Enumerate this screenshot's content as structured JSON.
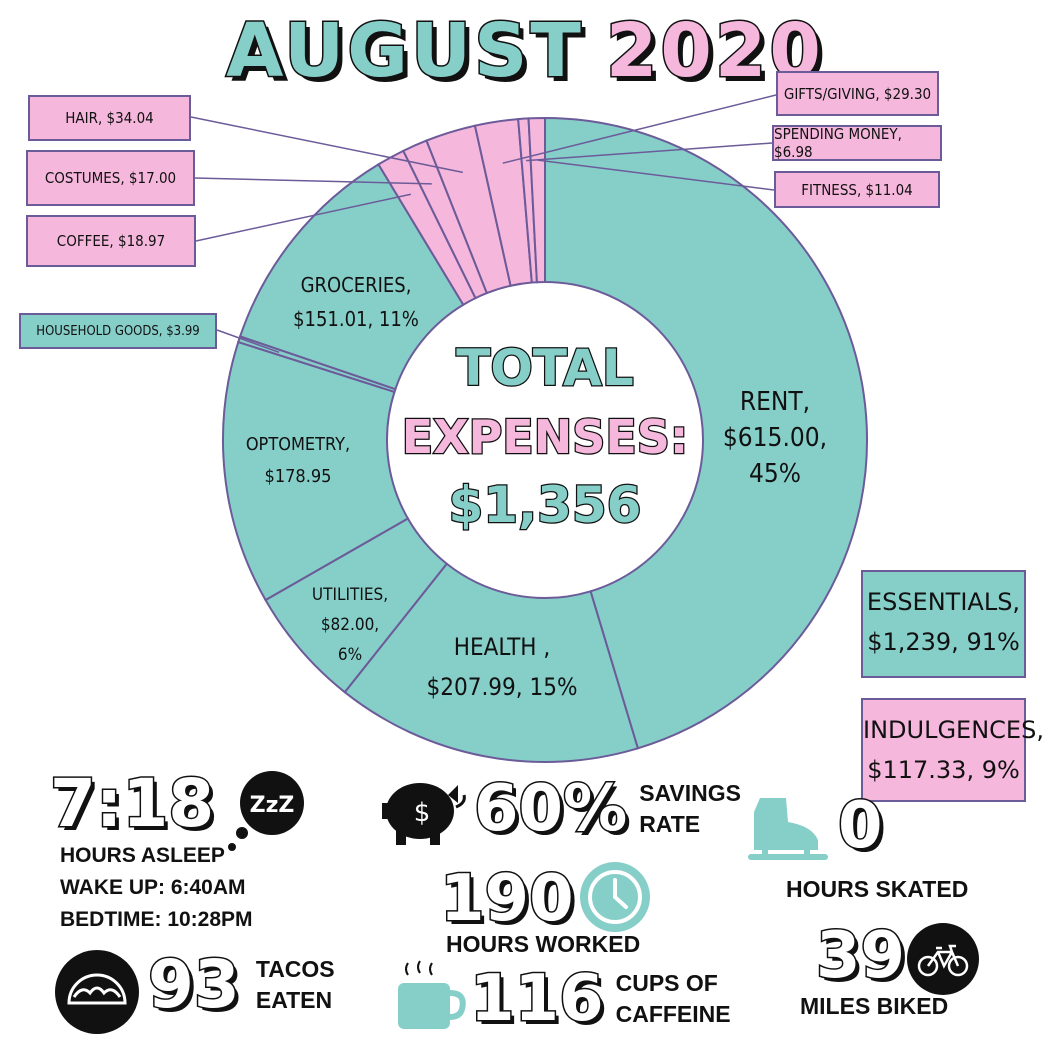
{
  "title": {
    "part1": "AUGUST",
    "part2": "2020"
  },
  "center": {
    "line1": "TOTAL",
    "line2": "EXPENSES:",
    "line3": "$1,356"
  },
  "colors": {
    "essential": "#86cfc9",
    "indulgence": "#f6b7dc",
    "border": "#6c5b99"
  },
  "chart_data": {
    "type": "pie",
    "donut": true,
    "total": 1356,
    "slices": [
      {
        "name": "RENT",
        "value": 615.0,
        "label_lines": [
          "RENT,",
          "$615.00,",
          "45%"
        ],
        "group": "essential"
      },
      {
        "name": "HEALTH",
        "value": 207.99,
        "label_lines": [
          "HEALTH ,",
          "$207.99, 15%"
        ],
        "group": "essential"
      },
      {
        "name": "UTILITIES",
        "value": 82.0,
        "label_lines": [
          "UTILITIES,",
          "$82.00,",
          "6%"
        ],
        "group": "essential"
      },
      {
        "name": "OPTOMETRY",
        "value": 178.95,
        "label_lines": [
          "OPTOMETRY,",
          "$178.95"
        ],
        "group": "essential"
      },
      {
        "name": "HOUSEHOLD GOODS",
        "value": 3.99,
        "callout": "HOUSEHOLD GOODS, $3.99",
        "group": "essential"
      },
      {
        "name": "GROCERIES",
        "value": 151.01,
        "label_lines": [
          "GROCERIES,",
          "$151.01, 11%"
        ],
        "group": "essential"
      },
      {
        "name": "COFFEE",
        "value": 18.97,
        "callout": "COFFEE, $18.97",
        "group": "indulgence"
      },
      {
        "name": "COSTUMES",
        "value": 17.0,
        "callout": "COSTUMES, $17.00",
        "group": "indulgence"
      },
      {
        "name": "HAIR",
        "value": 34.04,
        "callout": "HAIR, $34.04",
        "group": "indulgence"
      },
      {
        "name": "GIFTS/GIVING",
        "value": 29.3,
        "callout": "GIFTS/GIVING, $29.30",
        "group": "indulgence"
      },
      {
        "name": "SPENDING MONEY",
        "value": 6.98,
        "callout": "SPENDING MONEY, $6.98",
        "group": "indulgence"
      },
      {
        "name": "FITNESS",
        "value": 11.04,
        "callout": "FITNESS, $11.04",
        "group": "indulgence"
      }
    ],
    "summary": [
      {
        "name": "ESSENTIALS",
        "line1": "ESSENTIALS,",
        "line2": "$1,239, 91%",
        "value": 1239
      },
      {
        "name": "INDULGENCES",
        "line1": "INDULGENCES,",
        "line2": "$117.33, 9%",
        "value": 117.33
      }
    ]
  },
  "stats": {
    "sleep": {
      "value": "7:18",
      "label": "HOURS ASLEEP",
      "wake": "WAKE UP: 6:40AM",
      "bed": "BEDTIME: 10:28PM",
      "icon": "zzz-bubble-icon",
      "icon_text": "ZzZ"
    },
    "tacos": {
      "value": "93",
      "line1": "TACOS",
      "line2": "EATEN",
      "icon": "taco-icon"
    },
    "savings": {
      "value": "60%",
      "line1": "SAVINGS",
      "line2": "RATE",
      "icon": "piggy-bank-icon",
      "icon_text": "$"
    },
    "worked": {
      "value": "190",
      "label": "HOURS WORKED",
      "icon": "clock-icon"
    },
    "caffeine": {
      "value": "116",
      "line1": "CUPS OF",
      "line2": "CAFFEINE",
      "icon": "coffee-cup-icon"
    },
    "skated": {
      "value": "0",
      "label": "HOURS SKATED",
      "icon": "ice-skate-icon"
    },
    "biked": {
      "value": "39",
      "label": "MILES BIKED",
      "icon": "bicycle-icon"
    }
  }
}
